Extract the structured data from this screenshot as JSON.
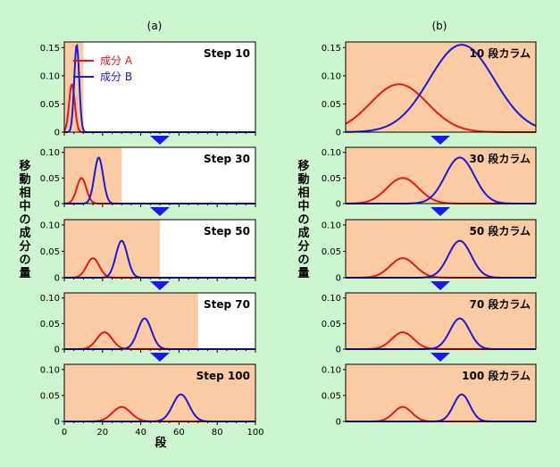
{
  "colors": {
    "background": "#cdf5d0",
    "mobile_phase": "#fccba4",
    "component_a": "#e01a1a",
    "component_b": "#1a1ad8",
    "arrow": "#1a1af0",
    "axis": "#000000",
    "plot_bg": "#ffffff"
  },
  "labels": {
    "panel_a": "(a)",
    "panel_b": "(b)",
    "ylabel": "移動相中の成分の量",
    "xlabel": "段",
    "legend_a": "成分 A",
    "legend_b": "成分 B"
  },
  "chart_data": [
    {
      "panel": "(a)",
      "type": "line",
      "title": "Step 10",
      "xlim": [
        0,
        100
      ],
      "ylim": [
        0,
        0.16
      ],
      "yticks": [
        "0",
        "0.05",
        "0.10",
        "0.15"
      ],
      "xticks": [
        "",
        "",
        "",
        "",
        "",
        ""
      ],
      "mobile_phase_end": 10,
      "legend": true,
      "series": [
        {
          "name": "成分 A",
          "peak_x": 4,
          "peak_y": 0.085,
          "sigma": 1.5
        },
        {
          "name": "成分 B",
          "peak_x": 6.5,
          "peak_y": 0.155,
          "sigma": 1.3
        }
      ]
    },
    {
      "panel": "(a)",
      "type": "line",
      "title": "Step 30",
      "xlim": [
        0,
        100
      ],
      "ylim": [
        0,
        0.11
      ],
      "yticks": [
        "0",
        "0.05",
        "0.10"
      ],
      "xticks": [
        "",
        "",
        "",
        "",
        "",
        ""
      ],
      "mobile_phase_end": 30,
      "series": [
        {
          "name": "成分 A",
          "peak_x": 9,
          "peak_y": 0.05,
          "sigma": 2.5
        },
        {
          "name": "成分 B",
          "peak_x": 18,
          "peak_y": 0.09,
          "sigma": 2.3
        }
      ]
    },
    {
      "panel": "(a)",
      "type": "line",
      "title": "Step 50",
      "xlim": [
        0,
        100
      ],
      "ylim": [
        0,
        0.11
      ],
      "yticks": [
        "0",
        "0.05",
        "0.10"
      ],
      "xticks": [
        "",
        "",
        "",
        "",
        "",
        ""
      ],
      "mobile_phase_end": 50,
      "series": [
        {
          "name": "成分 A",
          "peak_x": 15,
          "peak_y": 0.037,
          "sigma": 3.3
        },
        {
          "name": "成分 B",
          "peak_x": 30,
          "peak_y": 0.07,
          "sigma": 3.0
        }
      ]
    },
    {
      "panel": "(a)",
      "type": "line",
      "title": "Step 70",
      "xlim": [
        0,
        100
      ],
      "ylim": [
        0,
        0.11
      ],
      "yticks": [
        "0",
        "0.05",
        "0.10"
      ],
      "xticks": [
        "",
        "",
        "",
        "",
        "",
        ""
      ],
      "mobile_phase_end": 70,
      "series": [
        {
          "name": "成分 A",
          "peak_x": 21,
          "peak_y": 0.033,
          "sigma": 4.0
        },
        {
          "name": "成分 B",
          "peak_x": 42,
          "peak_y": 0.06,
          "sigma": 3.6
        }
      ]
    },
    {
      "panel": "(a)",
      "type": "line",
      "title": "Step 100",
      "xlim": [
        0,
        100
      ],
      "ylim": [
        0,
        0.11
      ],
      "yticks": [
        "0",
        "0.05",
        "0.10"
      ],
      "xticks": [
        "0",
        "20",
        "40",
        "60",
        "80",
        "100"
      ],
      "mobile_phase_end": 100,
      "series": [
        {
          "name": "成分 A",
          "peak_x": 30,
          "peak_y": 0.028,
          "sigma": 4.8
        },
        {
          "name": "成分 B",
          "peak_x": 61,
          "peak_y": 0.052,
          "sigma": 4.3
        }
      ]
    },
    {
      "panel": "(b)",
      "type": "line",
      "title": "10 段カラム",
      "xlim": [
        0,
        10
      ],
      "ylim": [
        0,
        0.16
      ],
      "yticks": [
        "0",
        "0.05",
        "0.10",
        "0.15"
      ],
      "mobile_phase_end": 10,
      "series": [
        {
          "name": "成分 A",
          "peak_x": 2.8,
          "peak_y": 0.085,
          "sigma": 1.5
        },
        {
          "name": "成分 B",
          "peak_x": 6.1,
          "peak_y": 0.155,
          "sigma": 1.7
        }
      ]
    },
    {
      "panel": "(b)",
      "type": "line",
      "title": "30 段カラム",
      "xlim": [
        0,
        30
      ],
      "ylim": [
        0,
        0.11
      ],
      "yticks": [
        "0",
        "0.05",
        "0.10"
      ],
      "mobile_phase_end": 30,
      "series": [
        {
          "name": "成分 A",
          "peak_x": 9,
          "peak_y": 0.05,
          "sigma": 2.5
        },
        {
          "name": "成分 B",
          "peak_x": 18,
          "peak_y": 0.09,
          "sigma": 2.3
        }
      ]
    },
    {
      "panel": "(b)",
      "type": "line",
      "title": "50 段カラム",
      "xlim": [
        0,
        50
      ],
      "ylim": [
        0,
        0.11
      ],
      "yticks": [
        "0",
        "0.05",
        "0.10"
      ],
      "mobile_phase_end": 50,
      "series": [
        {
          "name": "成分 A",
          "peak_x": 15,
          "peak_y": 0.037,
          "sigma": 3.3
        },
        {
          "name": "成分 B",
          "peak_x": 30,
          "peak_y": 0.07,
          "sigma": 3.0
        }
      ]
    },
    {
      "panel": "(b)",
      "type": "line",
      "title": "70 段カラム",
      "xlim": [
        0,
        70
      ],
      "ylim": [
        0,
        0.11
      ],
      "yticks": [
        "0",
        "0.05",
        "0.10"
      ],
      "mobile_phase_end": 70,
      "series": [
        {
          "name": "成分 A",
          "peak_x": 21,
          "peak_y": 0.033,
          "sigma": 4.0
        },
        {
          "name": "成分 B",
          "peak_x": 42,
          "peak_y": 0.06,
          "sigma": 3.6
        }
      ]
    },
    {
      "panel": "(b)",
      "type": "line",
      "title": "100 段カラム",
      "xlim": [
        0,
        100
      ],
      "ylim": [
        0,
        0.11
      ],
      "yticks": [
        "0",
        "0.05",
        "0.10"
      ],
      "mobile_phase_end": 100,
      "series": [
        {
          "name": "成分 A",
          "peak_x": 30,
          "peak_y": 0.028,
          "sigma": 4.8
        },
        {
          "name": "成分 B",
          "peak_x": 61,
          "peak_y": 0.052,
          "sigma": 4.3
        }
      ]
    }
  ]
}
